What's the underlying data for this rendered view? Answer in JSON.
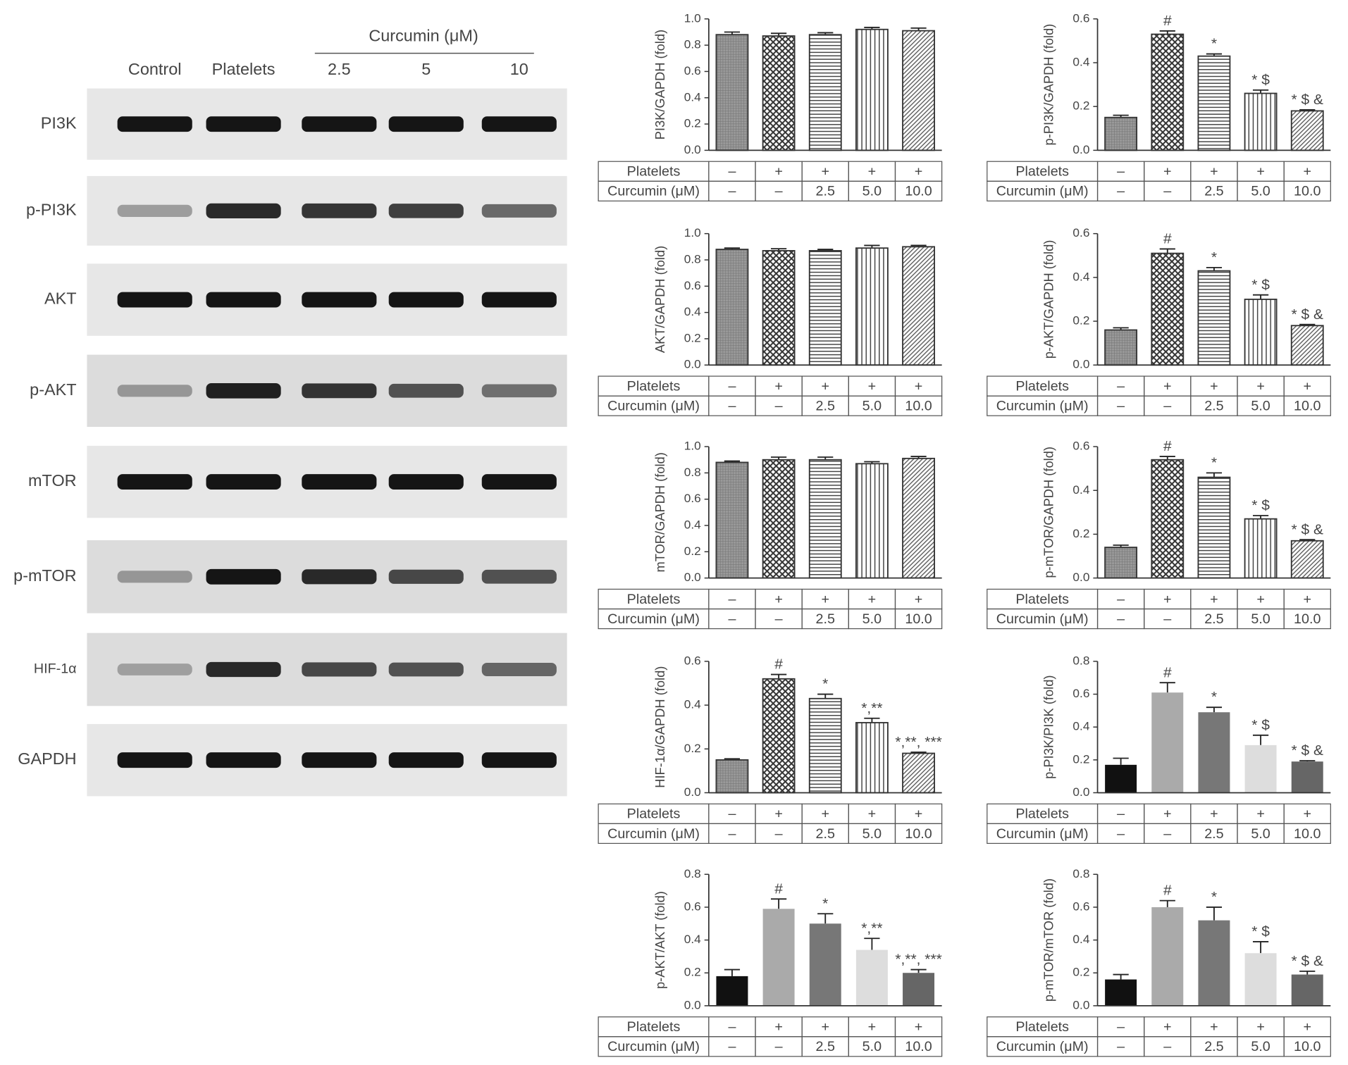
{
  "blot": {
    "header": "Curcumin (μM)",
    "lanes": [
      "Control",
      "Platelets",
      "2.5",
      "5",
      "10"
    ],
    "proteins": [
      "PI3K",
      "p-PI3K",
      "AKT",
      "p-AKT",
      "mTOR",
      "p-mTOR",
      "HIF-1α",
      "GAPDH"
    ]
  },
  "chart_data": [
    {
      "type": "bar",
      "ylabel": "PI3K/GAPDH (fold)",
      "values": [
        0.88,
        0.87,
        0.88,
        0.92,
        0.91
      ],
      "errors": [
        0.02,
        0.02,
        0.015,
        0.015,
        0.02
      ],
      "fill_styles": [
        "dense",
        "checker",
        "hlines",
        "vlines",
        "diagonal"
      ],
      "colors": [
        "#777777",
        "#333333",
        "#444444",
        "#444444",
        "#555555"
      ],
      "ylim": [
        0,
        1
      ],
      "yticks": [
        {
          "value": 0,
          "label": "0.0"
        },
        0.2,
        0.4,
        0.6,
        0.8,
        {
          "value": 1,
          "label": "1.0"
        }
      ],
      "table": {
        "rows": [
          [
            "Platelets",
            "–",
            "+",
            "+",
            "+",
            "+"
          ],
          [
            "Curcumin (μM)",
            "–",
            "–",
            "2.5",
            "5.0",
            "10.0"
          ]
        ]
      }
    },
    {
      "type": "bar",
      "ylabel": "p-PI3K/GAPDH (fold)",
      "values": [
        0.15,
        0.53,
        0.43,
        0.26,
        0.18
      ],
      "errors": [
        0.01,
        0.015,
        0.01,
        0.015,
        0.005
      ],
      "annotations": [
        null,
        "#",
        "*",
        "* $",
        "* $ &"
      ],
      "fill_styles": [
        "dense",
        "checker",
        "hlines",
        "vlines",
        "diagonal"
      ],
      "colors": [
        "#777777",
        "#333333",
        "#444444",
        "#444444",
        "#555555"
      ],
      "ylim": [
        0,
        0.6
      ],
      "yticks": [
        {
          "value": 0,
          "label": "0.0"
        },
        0.2,
        0.4,
        0.6
      ],
      "table": {
        "rows": [
          [
            "Platelets",
            "–",
            "+",
            "+",
            "+",
            "+"
          ],
          [
            "Curcumin (μM)",
            "–",
            "–",
            "2.5",
            "5.0",
            "10.0"
          ]
        ]
      }
    },
    {
      "type": "bar",
      "ylabel": "AKT/GAPDH (fold)",
      "values": [
        0.88,
        0.87,
        0.87,
        0.89,
        0.9
      ],
      "errors": [
        0.01,
        0.015,
        0.01,
        0.02,
        0.01
      ],
      "fill_styles": [
        "dense",
        "checker",
        "hlines",
        "vlines",
        "diagonal"
      ],
      "colors": [
        "#777777",
        "#333333",
        "#444444",
        "#444444",
        "#555555"
      ],
      "ylim": [
        0,
        1
      ],
      "yticks": [
        {
          "value": 0,
          "label": "0.0"
        },
        0.2,
        0.4,
        0.6,
        0.8,
        {
          "value": 1,
          "label": "1.0"
        }
      ],
      "table": {
        "rows": [
          [
            "Platelets",
            "–",
            "+",
            "+",
            "+",
            "+"
          ],
          [
            "Curcumin (μM)",
            "–",
            "–",
            "2.5",
            "5.0",
            "10.0"
          ]
        ]
      }
    },
    {
      "type": "bar",
      "ylabel": "p-AKT/GAPDH (fold)",
      "values": [
        0.16,
        0.51,
        0.43,
        0.3,
        0.18
      ],
      "errors": [
        0.01,
        0.02,
        0.015,
        0.02,
        0.005
      ],
      "annotations": [
        null,
        "#",
        "*",
        "* $",
        "* $ &"
      ],
      "fill_styles": [
        "dense",
        "checker",
        "hlines",
        "vlines",
        "diagonal"
      ],
      "colors": [
        "#777777",
        "#333333",
        "#444444",
        "#444444",
        "#555555"
      ],
      "ylim": [
        0,
        0.6
      ],
      "yticks": [
        {
          "value": 0,
          "label": "0.0"
        },
        0.2,
        0.4,
        0.6
      ],
      "table": {
        "rows": [
          [
            "Platelets",
            "–",
            "+",
            "+",
            "+",
            "+"
          ],
          [
            "Curcumin (μM)",
            "–",
            "–",
            "2.5",
            "5.0",
            "10.0"
          ]
        ]
      }
    },
    {
      "type": "bar",
      "ylabel": "mTOR/GAPDH (fold)",
      "values": [
        0.88,
        0.9,
        0.9,
        0.87,
        0.91
      ],
      "errors": [
        0.01,
        0.02,
        0.02,
        0.015,
        0.015
      ],
      "fill_styles": [
        "dense",
        "checker",
        "hlines",
        "vlines",
        "diagonal"
      ],
      "colors": [
        "#777777",
        "#333333",
        "#444444",
        "#444444",
        "#555555"
      ],
      "ylim": [
        0,
        1
      ],
      "yticks": [
        {
          "value": 0,
          "label": "0.0"
        },
        0.2,
        0.4,
        0.6,
        0.8,
        {
          "value": 1,
          "label": "1.0"
        }
      ],
      "table": {
        "rows": [
          [
            "Platelets",
            "–",
            "+",
            "+",
            "+",
            "+"
          ],
          [
            "Curcumin (μM)",
            "–",
            "–",
            "2.5",
            "5.0",
            "10.0"
          ]
        ]
      }
    },
    {
      "type": "bar",
      "ylabel": "p-mTOR/GAPDH (fold)",
      "values": [
        0.14,
        0.54,
        0.46,
        0.27,
        0.17
      ],
      "errors": [
        0.01,
        0.015,
        0.02,
        0.015,
        0.005
      ],
      "annotations": [
        null,
        "#",
        "*",
        "* $",
        "* $ &"
      ],
      "fill_styles": [
        "dense",
        "checker",
        "hlines",
        "vlines",
        "diagonal"
      ],
      "colors": [
        "#777777",
        "#333333",
        "#444444",
        "#444444",
        "#555555"
      ],
      "ylim": [
        0,
        0.6
      ],
      "yticks": [
        {
          "value": 0,
          "label": "0.0"
        },
        0.2,
        0.4,
        0.6
      ],
      "table": {
        "rows": [
          [
            "Platelets",
            "–",
            "+",
            "+",
            "+",
            "+"
          ],
          [
            "Curcumin (μM)",
            "–",
            "–",
            "2.5",
            "5.0",
            "10.0"
          ]
        ]
      }
    },
    {
      "type": "bar",
      "ylabel": "HIF-1α/GAPDH (fold)",
      "values": [
        0.15,
        0.52,
        0.43,
        0.32,
        0.18
      ],
      "errors": [
        0.005,
        0.02,
        0.02,
        0.02,
        0.005
      ],
      "annotations": [
        null,
        "#",
        "*",
        "*,**",
        "*,**, ***"
      ],
      "fill_styles": [
        "dense",
        "checker",
        "hlines",
        "vlines",
        "diagonal"
      ],
      "colors": [
        "#777777",
        "#333333",
        "#444444",
        "#444444",
        "#555555"
      ],
      "ylim": [
        0,
        0.6
      ],
      "yticks": [
        {
          "value": 0,
          "label": "0.0"
        },
        0.2,
        0.4,
        0.6
      ],
      "table": {
        "rows": [
          [
            "Platelets",
            "–",
            "+",
            "+",
            "+",
            "+"
          ],
          [
            "Curcumin (μM)",
            "–",
            "–",
            "2.5",
            "5.0",
            "10.0"
          ]
        ]
      }
    },
    {
      "type": "bar",
      "ylabel": "p-PI3K/PI3K (fold)",
      "values": [
        0.17,
        0.61,
        0.49,
        0.29,
        0.19
      ],
      "errors": [
        0.04,
        0.06,
        0.03,
        0.06,
        0.005
      ],
      "annotations": [
        null,
        "#",
        "*",
        "* $",
        "* $ &"
      ],
      "fill_styles": [
        "solid",
        "solid",
        "solid",
        "solid",
        "solid"
      ],
      "colors": [
        "#111111",
        "#aaaaaa",
        "#777777",
        "#dddddd",
        "#666666"
      ],
      "ylim": [
        0,
        0.8
      ],
      "yticks": [
        {
          "value": 0,
          "label": "0.0"
        },
        0.2,
        0.4,
        0.6,
        0.8
      ],
      "table": {
        "rows": [
          [
            "Platelets",
            "–",
            "+",
            "+",
            "+",
            "+"
          ],
          [
            "Curcumin (μM)",
            "–",
            "–",
            "2.5",
            "5.0",
            "10.0"
          ]
        ]
      }
    },
    {
      "type": "bar",
      "ylabel": "p-AKT/AKT (fold)",
      "values": [
        0.18,
        0.59,
        0.5,
        0.34,
        0.2
      ],
      "errors": [
        0.04,
        0.06,
        0.06,
        0.07,
        0.02
      ],
      "annotations": [
        null,
        "#",
        "*",
        "*,**",
        "*,**, ***"
      ],
      "fill_styles": [
        "solid",
        "solid",
        "solid",
        "solid",
        "solid"
      ],
      "colors": [
        "#111111",
        "#aaaaaa",
        "#777777",
        "#dddddd",
        "#666666"
      ],
      "ylim": [
        0,
        0.8
      ],
      "yticks": [
        {
          "value": 0,
          "label": "0.0"
        },
        0.2,
        0.4,
        0.6,
        0.8
      ],
      "table": {
        "rows": [
          [
            "Platelets",
            "–",
            "+",
            "+",
            "+",
            "+"
          ],
          [
            "Curcumin (μM)",
            "–",
            "–",
            "2.5",
            "5.0",
            "10.0"
          ]
        ]
      }
    },
    {
      "type": "bar",
      "ylabel": "p-mTOR/mTOR (fold)",
      "values": [
        0.16,
        0.6,
        0.52,
        0.32,
        0.19
      ],
      "errors": [
        0.03,
        0.04,
        0.08,
        0.07,
        0.02
      ],
      "annotations": [
        null,
        "#",
        "*",
        "* $",
        "* $ &"
      ],
      "fill_styles": [
        "solid",
        "solid",
        "solid",
        "solid",
        "solid"
      ],
      "colors": [
        "#111111",
        "#aaaaaa",
        "#777777",
        "#dddddd",
        "#666666"
      ],
      "ylim": [
        0,
        0.8
      ],
      "yticks": [
        {
          "value": 0,
          "label": "0.0"
        },
        0.2,
        0.4,
        0.6,
        0.8
      ],
      "table": {
        "rows": [
          [
            "Platelets",
            "–",
            "+",
            "+",
            "+",
            "+"
          ],
          [
            "Curcumin (μM)",
            "–",
            "–",
            "2.5",
            "5.0",
            "10.0"
          ]
        ]
      }
    }
  ]
}
